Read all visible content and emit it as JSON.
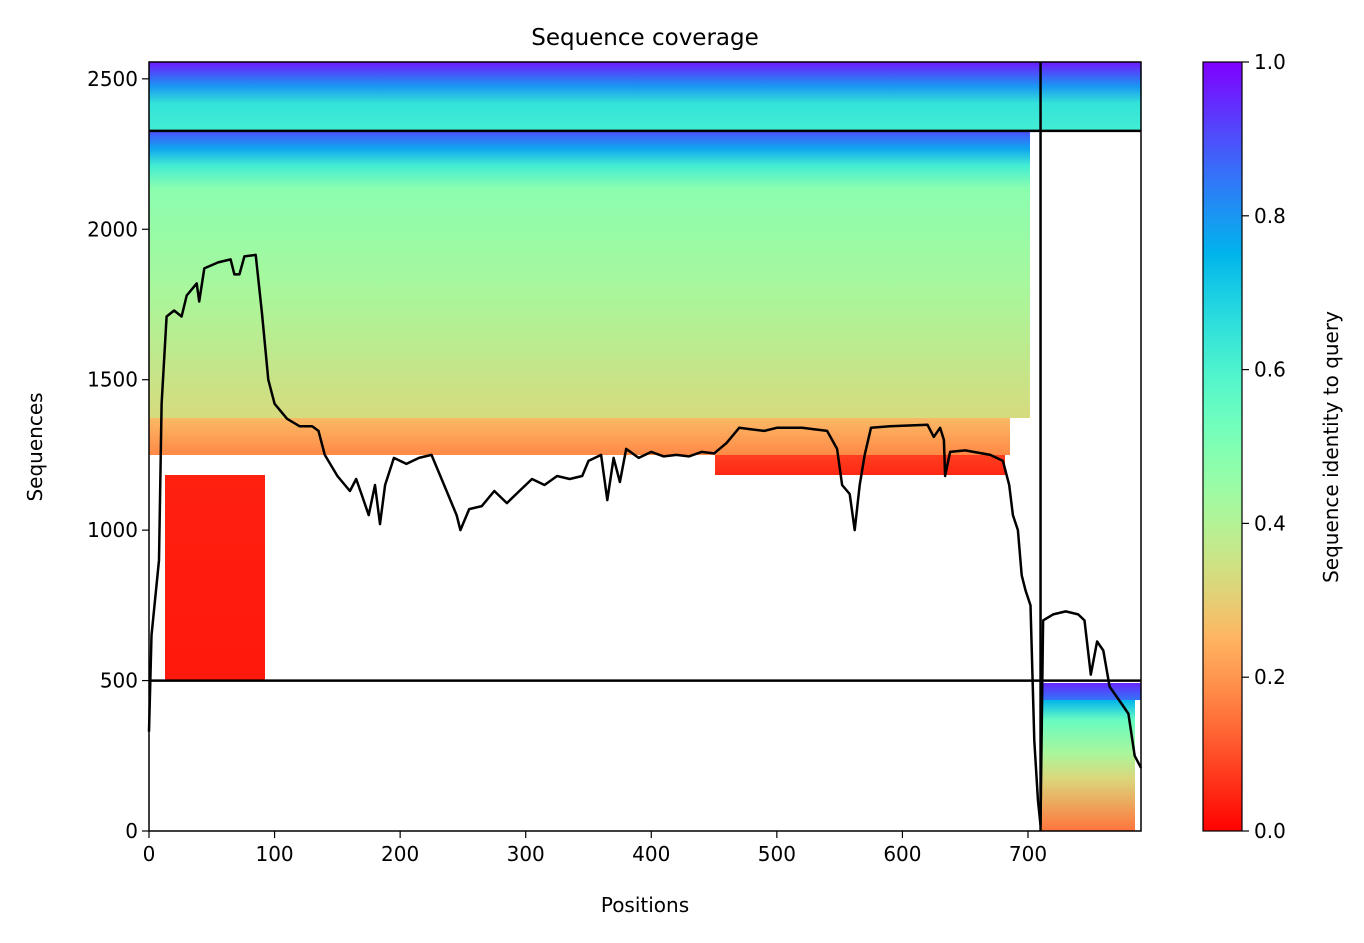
{
  "chart_data": {
    "type": "coverage",
    "title": "Sequence coverage",
    "xlabel": "Positions",
    "ylabel": "Sequences",
    "colorbar_label": "Sequence identity to query",
    "xlim": [
      0,
      790
    ],
    "ylim": [
      0,
      2556
    ],
    "xticks": [
      0,
      100,
      200,
      300,
      400,
      500,
      600,
      700
    ],
    "yticks": [
      0,
      500,
      1000,
      1500,
      2000,
      2500
    ],
    "colorbar_lim": [
      0,
      1
    ],
    "colorbar_ticks": [
      {
        "value": 0,
        "label": "0.0"
      },
      0.2,
      0.4,
      0.6,
      0.8,
      {
        "value": 1,
        "label": "1.0"
      }
    ],
    "hlines": [
      500,
      2327
    ],
    "vlines": [
      710
    ],
    "x": [
      0,
      2,
      8,
      10,
      14,
      20,
      26,
      30,
      38,
      40,
      44,
      55,
      65,
      68,
      72,
      76,
      85,
      90,
      95,
      100,
      110,
      120,
      130,
      135,
      140,
      150,
      160,
      165,
      170,
      175,
      180,
      184,
      188,
      195,
      205,
      215,
      225,
      235,
      245,
      248,
      255,
      265,
      275,
      285,
      295,
      305,
      315,
      325,
      335,
      345,
      350,
      360,
      365,
      370,
      375,
      380,
      390,
      400,
      410,
      420,
      430,
      440,
      450,
      460,
      470,
      480,
      490,
      500,
      520,
      540,
      548,
      552,
      558,
      562,
      566,
      570,
      575,
      590,
      620,
      625,
      630,
      633,
      634,
      638,
      650,
      670,
      680,
      685,
      688,
      692,
      695,
      698,
      702,
      705,
      708,
      710,
      712,
      720,
      730,
      740,
      745,
      750,
      755,
      760,
      765,
      775,
      780,
      785,
      790
    ],
    "series": [
      {
        "color": "#000000",
        "values": [
          330,
          650,
          900,
          1420,
          1710,
          1730,
          1710,
          1780,
          1820,
          1760,
          1870,
          1890,
          1900,
          1850,
          1850,
          1910,
          1915,
          1720,
          1500,
          1420,
          1370,
          1345,
          1345,
          1330,
          1250,
          1180,
          1130,
          1170,
          1110,
          1050,
          1150,
          1020,
          1150,
          1240,
          1220,
          1240,
          1250,
          1150,
          1050,
          1000,
          1070,
          1080,
          1130,
          1090,
          1130,
          1170,
          1150,
          1180,
          1170,
          1180,
          1230,
          1250,
          1100,
          1240,
          1160,
          1270,
          1240,
          1260,
          1245,
          1250,
          1245,
          1260,
          1255,
          1290,
          1340,
          1335,
          1330,
          1340,
          1340,
          1330,
          1270,
          1150,
          1120,
          1000,
          1150,
          1250,
          1340,
          1345,
          1350,
          1310,
          1340,
          1300,
          1180,
          1260,
          1265,
          1250,
          1230,
          1150,
          1050,
          1000,
          850,
          800,
          750,
          300,
          100,
          20,
          700,
          720,
          730,
          720,
          700,
          520,
          630,
          600,
          480,
          420,
          390,
          250,
          210
        ]
      }
    ]
  }
}
